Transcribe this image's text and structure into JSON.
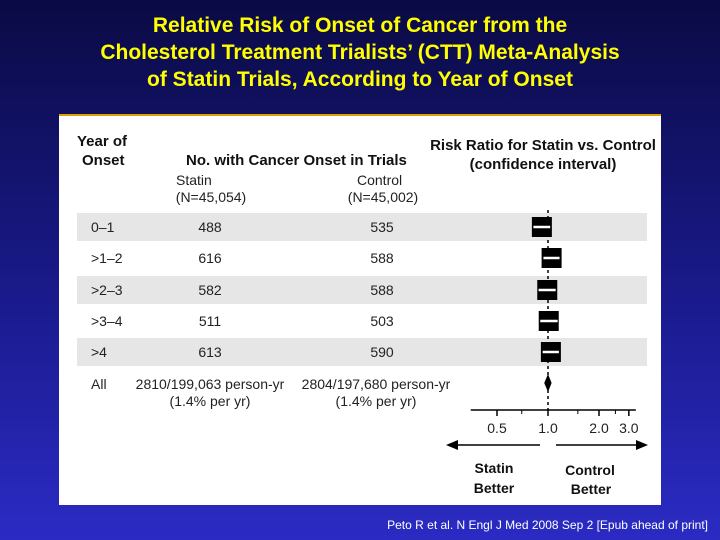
{
  "title": {
    "line1": "Relative Risk of Onset of Cancer from the",
    "line2": "Cholesterol Treatment Trialists’ (CTT) Meta-Analysis",
    "line3": "of Statin Trials, According to Year of Onset"
  },
  "table": {
    "header_year": [
      "Year of",
      "Onset"
    ],
    "header_no": "No. with Cancer Onset in Trials",
    "statin_label": "Statin",
    "statin_n": "(N=45,054)",
    "control_label": "Control",
    "control_n": "(N=45,002)",
    "header_risk": [
      "Risk Ratio for Statin vs. Control",
      "(confidence interval)"
    ],
    "rows": [
      {
        "year": "0–1",
        "statin": "488",
        "control": "535"
      },
      {
        "year": ">1–2",
        "statin": "616",
        "control": "588"
      },
      {
        "year": ">2–3",
        "statin": "582",
        "control": "588"
      },
      {
        "year": ">3–4",
        "statin": "511",
        "control": "503"
      },
      {
        "year": ">4",
        "statin": "613",
        "control": "590"
      }
    ],
    "all": {
      "year": "All",
      "statin": "2810/199,063 person-yr",
      "statin_rate": "(1.4% per yr)",
      "control": "2804/197,680 person-yr",
      "control_rate": "(1.4% per yr)"
    }
  },
  "chart_data": {
    "type": "forest",
    "scale": "log",
    "x_ticks": [
      0.5,
      1.0,
      2.0,
      3.0
    ],
    "x_tick_labels": [
      "0.5",
      "1.0",
      "2.0",
      "3.0"
    ],
    "reference_line": 1.0,
    "categories": [
      "0–1",
      ">1–2",
      ">2–3",
      ">3–4",
      ">4",
      "All"
    ],
    "estimates": [
      0.92,
      1.05,
      0.99,
      1.01,
      1.04,
      1.0
    ],
    "lower": [
      0.82,
      0.94,
      0.88,
      0.9,
      0.93,
      0.95
    ],
    "upper": [
      1.03,
      1.17,
      1.11,
      1.14,
      1.16,
      1.05
    ],
    "left_label": [
      "Statin",
      "Better"
    ],
    "right_label": [
      "Control",
      "Better"
    ]
  },
  "citation": "Peto R et al. N Engl J Med 2008 Sep 2 [Epub ahead of print]"
}
